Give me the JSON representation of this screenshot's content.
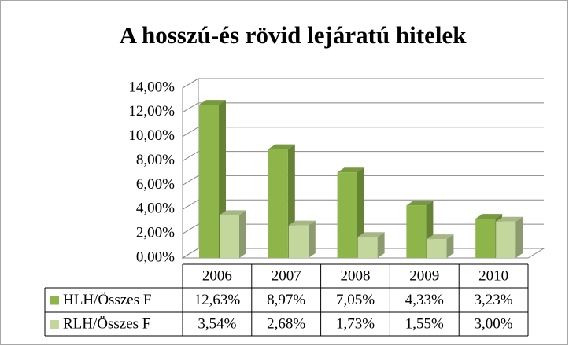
{
  "chart_data": {
    "type": "bar3d",
    "title": "A hosszú-és rövid lejáratú hitelek",
    "categories": [
      "2006",
      "2007",
      "2008",
      "2009",
      "2010"
    ],
    "series": [
      {
        "name": "HLH/Összes F",
        "color": "#8db54a",
        "values": [
          12.63,
          8.97,
          7.05,
          4.33,
          3.23
        ],
        "value_labels": [
          "12,63%",
          "8,97%",
          "7,05%",
          "4,33%",
          "3,23%"
        ]
      },
      {
        "name": "RLH/Összes F",
        "color": "#c3d69b",
        "values": [
          3.54,
          2.68,
          1.73,
          1.55,
          3.0
        ],
        "value_labels": [
          "3,54%",
          "2,68%",
          "1,73%",
          "1,55%",
          "3,00%"
        ]
      }
    ],
    "ylim": [
      0,
      14
    ],
    "yticks": [
      {
        "value": 0,
        "label": "0,00%"
      },
      {
        "value": 2,
        "label": "2,00%"
      },
      {
        "value": 4,
        "label": "4,00%"
      },
      {
        "value": 6,
        "label": "6,00%"
      },
      {
        "value": 8,
        "label": "8,00%"
      },
      {
        "value": 10,
        "label": "10,00%"
      },
      {
        "value": 12,
        "label": "12,00%"
      },
      {
        "value": 14,
        "label": "14,00%"
      }
    ],
    "grid": true,
    "data_table": true
  }
}
